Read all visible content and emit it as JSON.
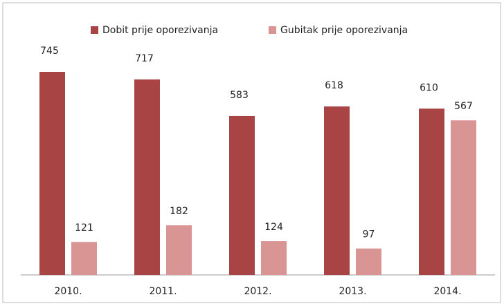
{
  "chart_data": {
    "type": "bar",
    "categories": [
      "2010.",
      "2011.",
      "2012.",
      "2013.",
      "2014."
    ],
    "series": [
      {
        "name": "Dobit prije oporezivanja",
        "color": "#a94444",
        "values": [
          745,
          717,
          583,
          618,
          610
        ]
      },
      {
        "name": "Gubitak prije oporezivanja",
        "color": "#d99594",
        "values": [
          121,
          182,
          124,
          97,
          567
        ]
      }
    ],
    "legend": "top"
  }
}
